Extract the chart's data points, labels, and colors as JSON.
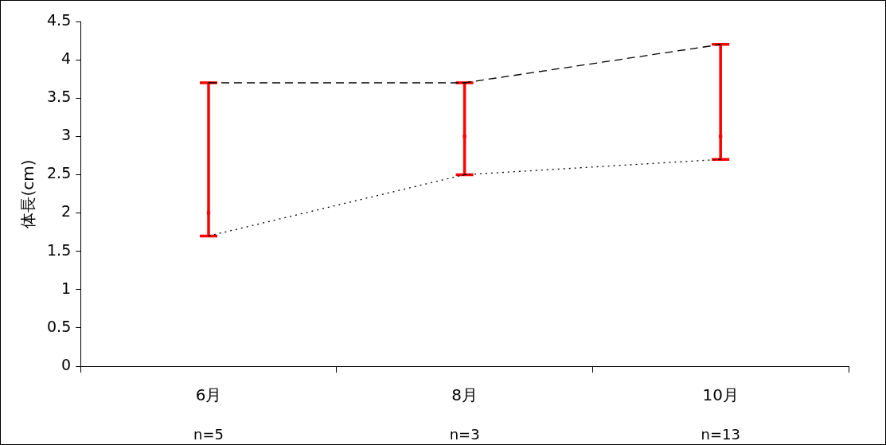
{
  "chart_data": {
    "type": "line",
    "ylabel": "体長(cm)",
    "categories": [
      "6月",
      "8月",
      "10月"
    ],
    "series": [
      {
        "type": "scatter",
        "color": "#ff0000",
        "values": [
          2.0,
          3.0,
          3.0
        ],
        "errors": [
          [
            1.7,
            3.7
          ],
          [
            2.5,
            3.7
          ],
          [
            2.7,
            4.2
          ]
        ],
        "marker": "square"
      },
      {
        "color": "#000000",
        "values": [
          3.7,
          3.7,
          4.2
        ],
        "marker": "none",
        "line_style": "dashed"
      },
      {
        "color": "#000000",
        "values": [
          1.7,
          2.5,
          2.7
        ],
        "marker": "none",
        "line_style": "dotted"
      }
    ],
    "ylim": [
      0,
      4.5
    ],
    "yticks": [
      0,
      0.5,
      1,
      1.5,
      2,
      2.5,
      3,
      3.5,
      4,
      4.5
    ],
    "annotations": [
      "n=5",
      "n=3",
      "n=13"
    ],
    "grid": false,
    "legend": false
  }
}
